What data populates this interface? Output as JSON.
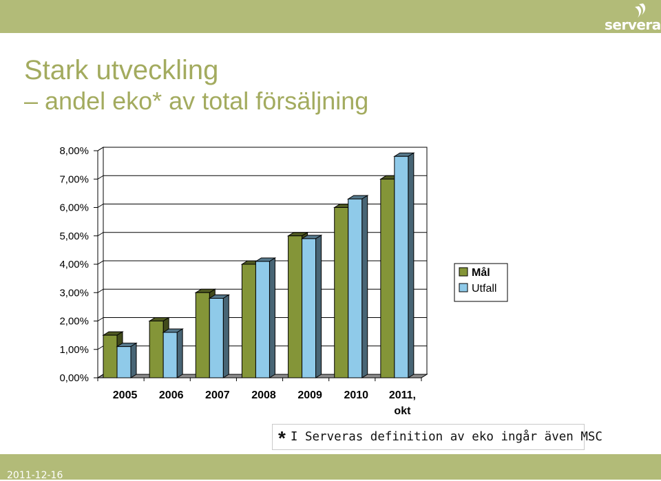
{
  "slide": {
    "title": "Stark utveckling",
    "subtitle": "– andel eko* av total försäljning",
    "footnote_star": "*",
    "footnote_text": "I Serveras definition av eko ingår även MSC",
    "date": "2011-12-16",
    "logo_text": "servera"
  },
  "colors": {
    "bar_band": "#b2bb78",
    "title": "#a3ab5f",
    "mal": "#849538",
    "utfall": "#8fcae9"
  },
  "chart_data": {
    "type": "bar",
    "categories": [
      "2005",
      "2006",
      "2007",
      "2008",
      "2009",
      "2010",
      "2011, okt"
    ],
    "category_lines": [
      [
        "2005"
      ],
      [
        "2006"
      ],
      [
        "2007"
      ],
      [
        "2008"
      ],
      [
        "2009"
      ],
      [
        "2010"
      ],
      [
        "2011,",
        "okt"
      ]
    ],
    "series": [
      {
        "name": "Mål",
        "values": [
          1.5,
          2.0,
          3.0,
          4.0,
          5.0,
          6.0,
          7.0
        ]
      },
      {
        "name": "Utfall",
        "values": [
          1.1,
          1.6,
          2.8,
          4.1,
          4.9,
          6.3,
          7.8
        ]
      }
    ],
    "y_ticks": [
      "0,00%",
      "1,00%",
      "2,00%",
      "3,00%",
      "4,00%",
      "5,00%",
      "6,00%",
      "7,00%",
      "8,00%"
    ],
    "ylim": [
      0,
      8
    ],
    "legend_position": "right",
    "style": "3d-clustered-column",
    "title": "",
    "xlabel": "",
    "ylabel": ""
  }
}
